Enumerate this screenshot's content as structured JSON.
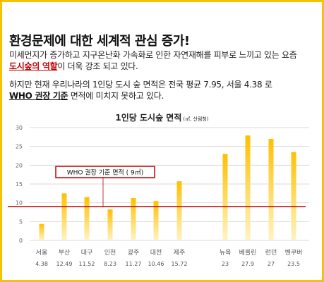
{
  "heading": "환경문제에 대한 세계적 관심 증가!",
  "paragraph1": {
    "line1": "미세먼지가 증가하고 지구온난화 가속화로 인한 자연재해를 피부로 느끼고 있는 요즘",
    "highlight": "도시숲의 역할",
    "line2_rest": "이 더욱 강조 되고 있다."
  },
  "paragraph2": {
    "line1": "하지만 현재 우리나라의 1인당 도시 숲 면적은 전국 평균 7.95, 서울 4.38 로",
    "highlight": "WHO 권장 기준",
    "line2_rest": " 면적에 미치지 못하고 있다."
  },
  "chart_data": {
    "type": "bar",
    "title": "1인당 도시숲 면적",
    "unit": "(㎡, 산림청)",
    "categories": [
      "서울",
      "부산",
      "대구",
      "인천",
      "광주",
      "대전",
      "제주",
      "뉴욕",
      "베를린",
      "런던",
      "벤쿠버"
    ],
    "values": [
      4.38,
      12.49,
      11.52,
      8.23,
      11.27,
      10.46,
      15.72,
      23,
      27.9,
      27,
      23.5
    ],
    "value_labels": [
      "4.38",
      "12.49",
      "11.52",
      "8.23",
      "11.27",
      "10.46",
      "15.72",
      "23",
      "27.9",
      "27",
      "23.5"
    ],
    "yticks": [
      0,
      5,
      10,
      15,
      20,
      25,
      30
    ],
    "ylim": [
      0,
      30
    ],
    "grid": true,
    "reference_line": {
      "value": 9,
      "label": "WHO 권장 기준 면적 ( 9㎡)"
    },
    "colors": {
      "bar_top": "#ffc000",
      "bar_bottom": "#fff3c4",
      "reference": "#c00000",
      "grid": "#d9d9d9",
      "frame": "#f5c400"
    }
  }
}
